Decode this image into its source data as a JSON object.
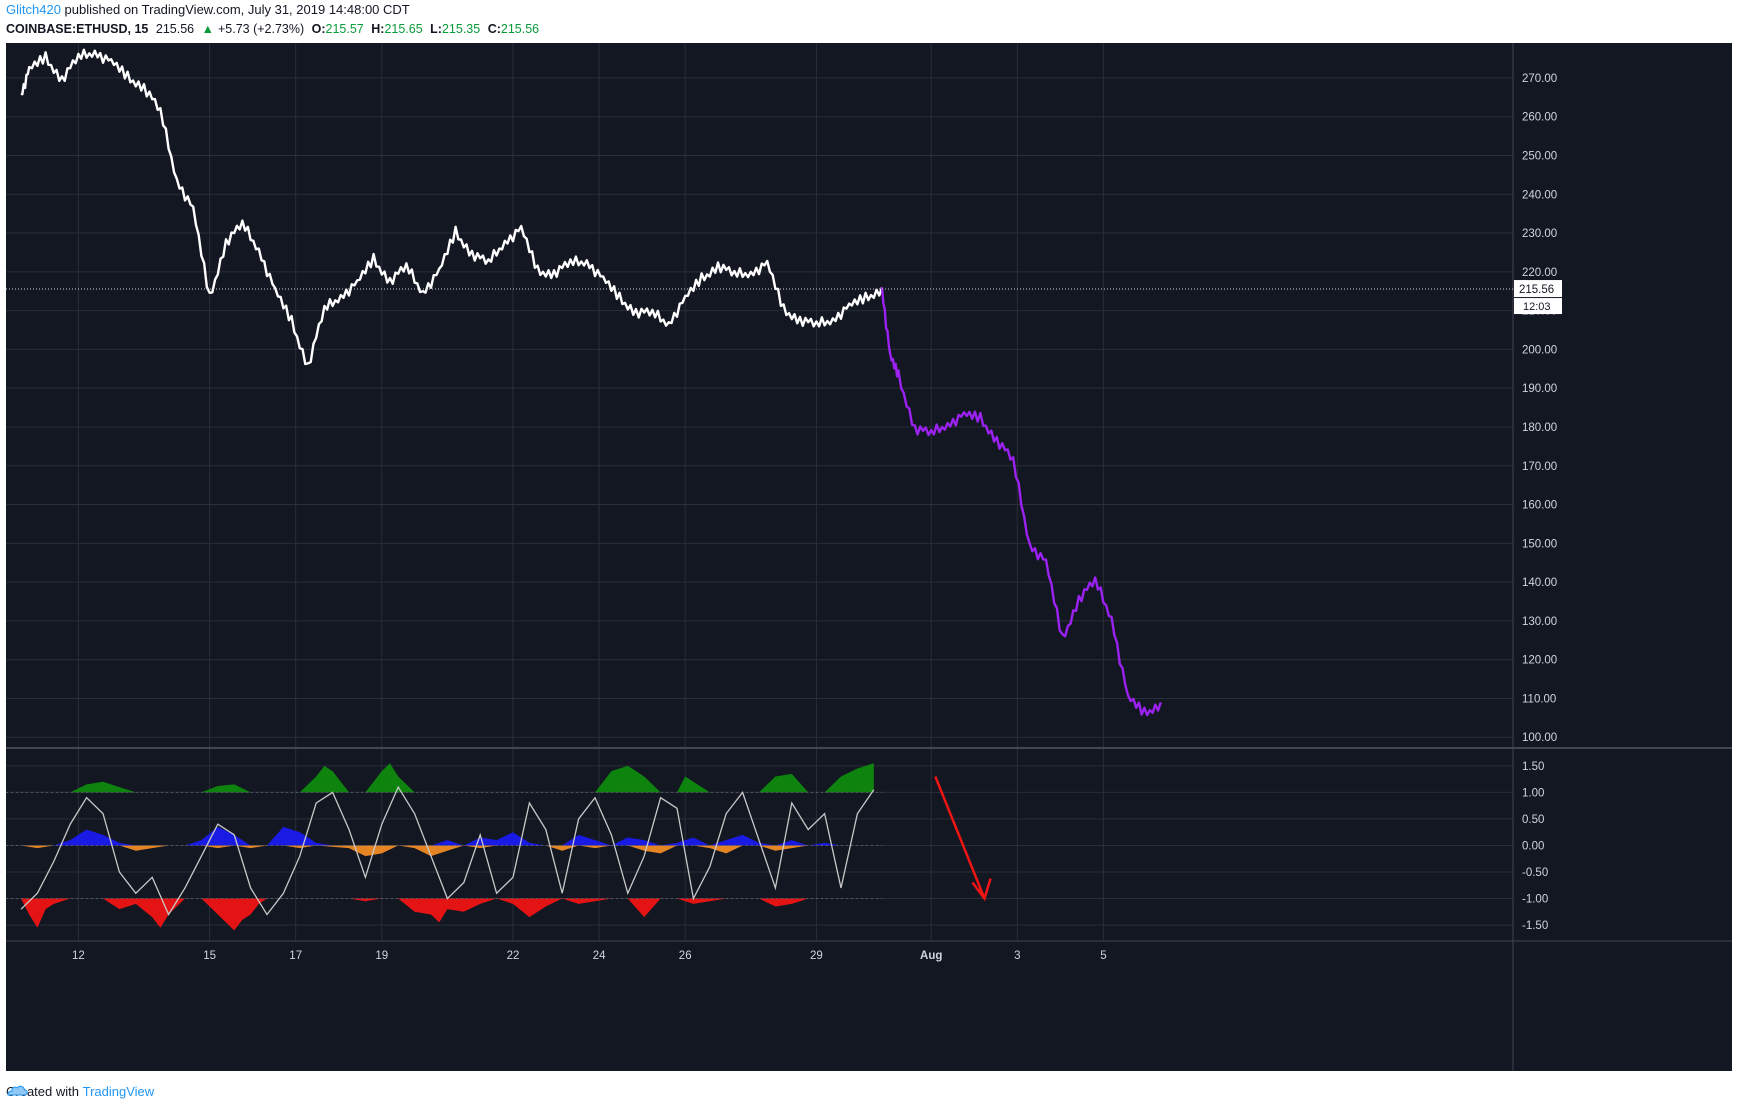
{
  "header": {
    "author": "Glitch420",
    "published_text": "published on TradingView.com, July 31, 2019 14:48:00 CDT"
  },
  "symbol_bar": {
    "symbol": "COINBASE:ETHUSD, 15",
    "last": "215.56",
    "change_icon": "triangle-up-icon",
    "change": "+5.73 (+2.73%)",
    "o_label": "O:",
    "o_value": "215.57",
    "h_label": "H:",
    "h_value": "215.65",
    "l_label": "L:",
    "l_value": "215.35",
    "c_label": "C:",
    "c_value": "215.56"
  },
  "footer": {
    "created_with": "Created with",
    "brand": "TradingView",
    "logo_icon": "tradingview-cloud-icon"
  },
  "colors": {
    "background": "#131722",
    "grid": "#2a2e39",
    "price_history": "#ffffff",
    "price_projection": "#9b22f2",
    "osc_line": "#c8c8c8",
    "osc_green": "#0e8a0e",
    "osc_blue": "#1a1af0",
    "osc_orange": "#f08a24",
    "osc_red": "#f01414",
    "arrow": "#f01414",
    "axis_text": "#d1d4dc",
    "badge_bg": "#ffffff"
  },
  "chart_data": [
    {
      "type": "line",
      "ylim": [
        98,
        279
      ],
      "y_ticks": [
        "270.00",
        "260.00",
        "250.00",
        "240.00",
        "230.00",
        "220.00",
        "210.00",
        "200.00",
        "190.00",
        "180.00",
        "170.00",
        "160.00",
        "150.00",
        "140.00",
        "130.00",
        "120.00",
        "110.00",
        "100.00"
      ],
      "x_ticks": [
        "12",
        "15",
        "17",
        "19",
        "22",
        "24",
        "26",
        "29",
        "Aug",
        "3",
        "5"
      ],
      "last_price_label": "215.56",
      "countdown_label": "12:03",
      "series": [
        {
          "style": "history",
          "x": [
            0,
            1,
            3,
            5,
            7,
            9,
            11,
            13,
            15,
            17,
            19,
            21,
            23,
            25,
            27,
            29,
            31,
            33,
            35,
            37,
            39,
            41,
            43,
            45,
            47,
            49,
            51,
            53,
            55,
            57,
            59,
            61,
            63,
            65,
            67,
            69,
            71,
            73,
            75,
            77,
            79,
            81,
            83,
            85,
            87,
            89,
            91,
            93,
            95,
            97,
            99,
            101,
            103,
            105
          ],
          "y": [
            266,
            272,
            275,
            270,
            275,
            277,
            274,
            270,
            268,
            261,
            244,
            236,
            213,
            228,
            232,
            226,
            215,
            207,
            196,
            210,
            214,
            217,
            223,
            218,
            221,
            215,
            220,
            230,
            225,
            222,
            228,
            231,
            220,
            220,
            222,
            223,
            218,
            213,
            210,
            209,
            207,
            213,
            218,
            222,
            219,
            220,
            222,
            210,
            208,
            206,
            208,
            211,
            213,
            216
          ]
        },
        {
          "style": "projection",
          "x": [
            105,
            106,
            107,
            109,
            111,
            113,
            115,
            117,
            119,
            121,
            123,
            125,
            127,
            129,
            131,
            133,
            135,
            137,
            139
          ],
          "y": [
            216,
            198,
            193,
            180,
            178,
            181,
            183,
            182,
            177,
            171,
            150,
            145,
            125,
            136,
            140,
            131,
            110,
            106,
            109
          ]
        }
      ]
    },
    {
      "type": "area",
      "ylim": [
        -1.8,
        1.78
      ],
      "y_ticks": [
        "1.50",
        "1.00",
        "0.50",
        "0.00",
        "-0.50",
        "-1.00",
        "-1.50"
      ],
      "series": [
        {
          "style": "oscillator-line",
          "x": [
            0,
            2,
            4,
            6,
            8,
            10,
            12,
            14,
            16,
            18,
            20,
            22,
            24,
            26,
            28,
            30,
            32,
            34,
            36,
            38,
            40,
            42,
            44,
            46,
            48,
            50,
            52,
            54,
            56,
            58,
            60,
            62,
            64,
            66,
            68,
            70,
            72,
            74,
            76,
            78,
            80,
            82,
            84,
            86,
            88,
            90,
            92,
            94,
            96,
            98,
            100,
            102,
            104
          ],
          "y": [
            -1.2,
            -0.9,
            -0.3,
            0.4,
            0.9,
            0.6,
            -0.5,
            -0.9,
            -0.6,
            -1.3,
            -0.8,
            -0.2,
            0.4,
            0.2,
            -0.8,
            -1.3,
            -0.9,
            -0.2,
            0.8,
            1.0,
            0.3,
            -0.6,
            0.4,
            1.1,
            0.6,
            -0.2,
            -1.0,
            -0.7,
            0.2,
            -0.9,
            -0.6,
            0.8,
            0.3,
            -0.9,
            0.5,
            0.9,
            0.2,
            -0.9,
            -0.2,
            0.9,
            0.7,
            -1.0,
            -0.4,
            0.6,
            1.0,
            0.1,
            -0.8,
            0.8,
            0.3,
            0.6,
            -0.8,
            0.6,
            1.05
          ]
        },
        {
          "style": "positive-major",
          "x": [
            6,
            8,
            10,
            12,
            14,
            22,
            24,
            26,
            28,
            34,
            36,
            37,
            38,
            40,
            42,
            44,
            45,
            46,
            48,
            50,
            52,
            70,
            72,
            74,
            76,
            78,
            80,
            81,
            82,
            84,
            90,
            92,
            94,
            96,
            98,
            100,
            102,
            104
          ],
          "y": [
            0,
            0.15,
            0.2,
            0.1,
            0,
            0,
            0.12,
            0.15,
            0,
            0,
            0.3,
            0.5,
            0.4,
            0,
            0,
            0.4,
            0.55,
            0.3,
            0,
            0,
            0,
            0,
            0.4,
            0.5,
            0.3,
            0,
            0,
            0.3,
            0.2,
            0,
            0,
            0.3,
            0.35,
            0,
            0,
            0.3,
            0.45,
            0.55
          ]
        },
        {
          "style": "positive-minor",
          "x": [
            0,
            4,
            6,
            8,
            10,
            12,
            14,
            16,
            20,
            22,
            24,
            26,
            28,
            30,
            32,
            34,
            36,
            38,
            40,
            50,
            52,
            54,
            56,
            58,
            60,
            62,
            64,
            66,
            68,
            70,
            72,
            74,
            76,
            78,
            80,
            82,
            84,
            86,
            88,
            90,
            92,
            94,
            96,
            98,
            100
          ],
          "y": [
            0,
            0,
            0.1,
            0.3,
            0.2,
            0.05,
            0,
            0,
            0,
            0.1,
            0.35,
            0.2,
            0,
            0,
            0.35,
            0.25,
            0.05,
            0,
            0,
            0,
            0.1,
            0,
            0.15,
            0.1,
            0.25,
            0.05,
            0,
            0,
            0.2,
            0.1,
            0,
            0.15,
            0.1,
            0,
            0.05,
            0.15,
            0,
            0.1,
            0.2,
            0.05,
            0,
            0.1,
            0,
            0.05,
            0
          ]
        },
        {
          "style": "negative-minor",
          "x": [
            0,
            2,
            4,
            6,
            8,
            10,
            12,
            14,
            16,
            18,
            20,
            22,
            24,
            26,
            28,
            30,
            32,
            34,
            36,
            40,
            42,
            44,
            46,
            48,
            50,
            52,
            54,
            56,
            58,
            60,
            62,
            64,
            66,
            68,
            70,
            72,
            74,
            76,
            78,
            80,
            82,
            84,
            86,
            88,
            90,
            92,
            94,
            96,
            98,
            100
          ],
          "y": [
            0,
            -0.05,
            0,
            0,
            0,
            0,
            0,
            -0.1,
            -0.05,
            0,
            0,
            0,
            -0.05,
            0,
            -0.05,
            0,
            0,
            -0.05,
            0,
            -0.05,
            -0.2,
            -0.15,
            0,
            -0.05,
            -0.2,
            -0.1,
            0,
            -0.05,
            0,
            0,
            0,
            0,
            -0.1,
            0,
            -0.05,
            0,
            0,
            -0.1,
            -0.15,
            0,
            0,
            -0.05,
            -0.15,
            0,
            0,
            -0.1,
            -0.05,
            0,
            0,
            0
          ]
        },
        {
          "style": "negative-major",
          "x": [
            0,
            1,
            2,
            3,
            4,
            6,
            8,
            10,
            12,
            14,
            16,
            17,
            18,
            20,
            22,
            24,
            26,
            27,
            28,
            29,
            30,
            32,
            34,
            36,
            38,
            40,
            42,
            44,
            46,
            48,
            50,
            51,
            52,
            54,
            56,
            58,
            60,
            62,
            64,
            66,
            68,
            70,
            72,
            74,
            76,
            78,
            80,
            82,
            84,
            86,
            88,
            90,
            92,
            94,
            96,
            98,
            100,
            102
          ],
          "y": [
            0,
            -0.3,
            -0.55,
            -0.2,
            -0.1,
            0,
            0,
            0,
            -0.2,
            -0.1,
            -0.35,
            -0.55,
            -0.3,
            0,
            0,
            -0.3,
            -0.6,
            -0.4,
            -0.3,
            -0.1,
            0,
            0,
            0,
            0,
            0,
            0,
            -0.05,
            0,
            0,
            -0.25,
            -0.3,
            -0.45,
            -0.2,
            -0.25,
            -0.1,
            0,
            -0.1,
            -0.35,
            -0.15,
            0,
            -0.1,
            -0.05,
            0,
            0,
            -0.35,
            0,
            0,
            -0.1,
            -0.05,
            0,
            0,
            0,
            -0.15,
            -0.1,
            0,
            0,
            0,
            0
          ]
        }
      ]
    }
  ]
}
